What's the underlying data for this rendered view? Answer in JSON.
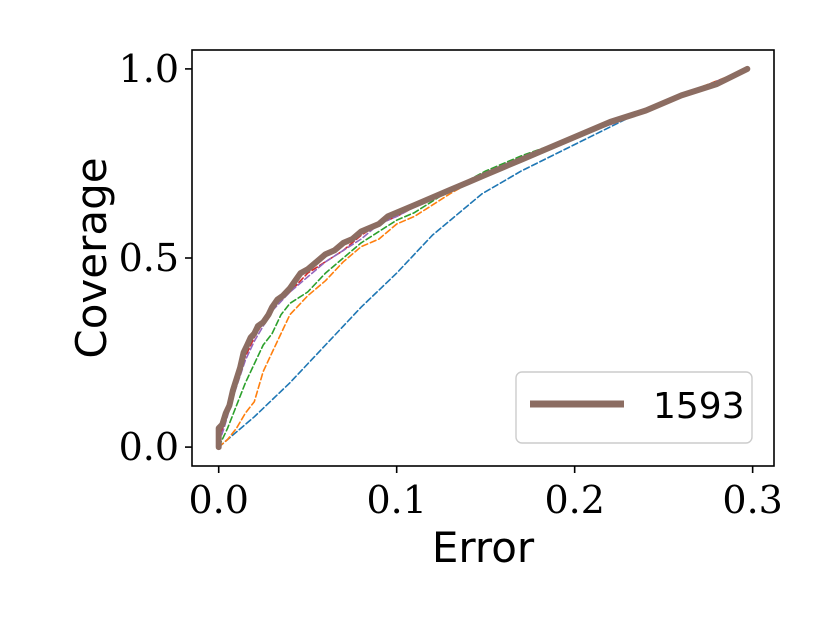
{
  "chart_data": {
    "type": "line",
    "title": "",
    "xlabel": "Error",
    "ylabel": "Coverage",
    "xlim": [
      -0.015,
      0.312
    ],
    "ylim": [
      -0.05,
      1.05
    ],
    "xticks": [
      {
        "value": 0.0,
        "label": "0.0"
      },
      {
        "value": 0.1,
        "label": "0.1"
      },
      {
        "value": 0.2,
        "label": "0.2"
      },
      {
        "value": 0.3,
        "label": "0.3"
      }
    ],
    "yticks": [
      {
        "value": 0.0,
        "label": "0.0"
      },
      {
        "value": 0.5,
        "label": "0.5"
      },
      {
        "value": 1.0,
        "label": "1.0"
      }
    ],
    "grid": false,
    "legend": {
      "position": "lower-right",
      "entries": [
        "1593"
      ]
    },
    "series": [
      {
        "color": "#1f77b4",
        "style": "dashed",
        "x": [
          0.0,
          0.02,
          0.04,
          0.06,
          0.08,
          0.1,
          0.12,
          0.148,
          0.17,
          0.2,
          0.23,
          0.26,
          0.297
        ],
        "y": [
          0.0,
          0.08,
          0.17,
          0.27,
          0.37,
          0.46,
          0.56,
          0.67,
          0.73,
          0.8,
          0.87,
          0.93,
          1.0
        ]
      },
      {
        "color": "#ff7f0e",
        "style": "dashed",
        "x": [
          0.0,
          0.005,
          0.01,
          0.015,
          0.02,
          0.025,
          0.03,
          0.035,
          0.04,
          0.05,
          0.06,
          0.07,
          0.08,
          0.09,
          0.1,
          0.11,
          0.12,
          0.13,
          0.145,
          0.16,
          0.18,
          0.2,
          0.22,
          0.25,
          0.27,
          0.297
        ],
        "y": [
          0.0,
          0.02,
          0.05,
          0.09,
          0.12,
          0.2,
          0.25,
          0.3,
          0.35,
          0.4,
          0.44,
          0.49,
          0.53,
          0.55,
          0.59,
          0.61,
          0.64,
          0.67,
          0.71,
          0.74,
          0.78,
          0.82,
          0.86,
          0.91,
          0.95,
          1.0
        ]
      },
      {
        "color": "#2ca02c",
        "style": "dashed",
        "x": [
          0.0,
          0.005,
          0.01,
          0.015,
          0.02,
          0.025,
          0.03,
          0.035,
          0.04,
          0.05,
          0.06,
          0.07,
          0.08,
          0.09,
          0.1,
          0.11,
          0.12,
          0.13,
          0.15,
          0.17,
          0.2,
          0.23,
          0.26,
          0.297
        ],
        "y": [
          0.0,
          0.05,
          0.11,
          0.17,
          0.22,
          0.27,
          0.3,
          0.35,
          0.38,
          0.41,
          0.46,
          0.5,
          0.54,
          0.57,
          0.6,
          0.62,
          0.65,
          0.68,
          0.73,
          0.77,
          0.82,
          0.87,
          0.93,
          1.0
        ]
      },
      {
        "color": "#d62728",
        "style": "dashed",
        "x": [
          0.0,
          0.003,
          0.006,
          0.01,
          0.015,
          0.02,
          0.025,
          0.03,
          0.04,
          0.05,
          0.06,
          0.07,
          0.08,
          0.09,
          0.1,
          0.12,
          0.14,
          0.16,
          0.18,
          0.2,
          0.23,
          0.26,
          0.297
        ],
        "y": [
          0.02,
          0.06,
          0.11,
          0.17,
          0.24,
          0.29,
          0.33,
          0.37,
          0.41,
          0.46,
          0.49,
          0.52,
          0.56,
          0.59,
          0.61,
          0.66,
          0.7,
          0.74,
          0.78,
          0.82,
          0.87,
          0.93,
          1.0
        ]
      },
      {
        "color": "#9467bd",
        "style": "dashed",
        "x": [
          0.0,
          0.003,
          0.006,
          0.01,
          0.015,
          0.02,
          0.025,
          0.03,
          0.04,
          0.05,
          0.06,
          0.07,
          0.08,
          0.09,
          0.1,
          0.12,
          0.14,
          0.16,
          0.18,
          0.2,
          0.23,
          0.26,
          0.297
        ],
        "y": [
          0.01,
          0.05,
          0.1,
          0.16,
          0.23,
          0.28,
          0.32,
          0.36,
          0.41,
          0.45,
          0.49,
          0.52,
          0.55,
          0.59,
          0.61,
          0.66,
          0.7,
          0.74,
          0.78,
          0.82,
          0.87,
          0.93,
          1.0
        ]
      },
      {
        "name": "1593",
        "color": "#8c6d62",
        "style": "solid",
        "x": [
          0.0,
          0.0,
          0.002,
          0.004,
          0.006,
          0.008,
          0.01,
          0.012,
          0.014,
          0.016,
          0.018,
          0.02,
          0.022,
          0.025,
          0.028,
          0.03,
          0.033,
          0.036,
          0.04,
          0.043,
          0.046,
          0.05,
          0.055,
          0.06,
          0.065,
          0.07,
          0.075,
          0.08,
          0.085,
          0.09,
          0.095,
          0.1,
          0.11,
          0.12,
          0.13,
          0.14,
          0.15,
          0.16,
          0.17,
          0.18,
          0.2,
          0.22,
          0.24,
          0.26,
          0.28,
          0.297
        ],
        "y": [
          0.0,
          0.05,
          0.06,
          0.09,
          0.11,
          0.15,
          0.18,
          0.21,
          0.25,
          0.27,
          0.29,
          0.3,
          0.32,
          0.33,
          0.35,
          0.37,
          0.39,
          0.4,
          0.42,
          0.44,
          0.46,
          0.47,
          0.49,
          0.51,
          0.52,
          0.54,
          0.55,
          0.57,
          0.58,
          0.59,
          0.61,
          0.62,
          0.64,
          0.66,
          0.68,
          0.7,
          0.72,
          0.74,
          0.76,
          0.78,
          0.82,
          0.86,
          0.89,
          0.93,
          0.96,
          1.0
        ]
      }
    ]
  }
}
